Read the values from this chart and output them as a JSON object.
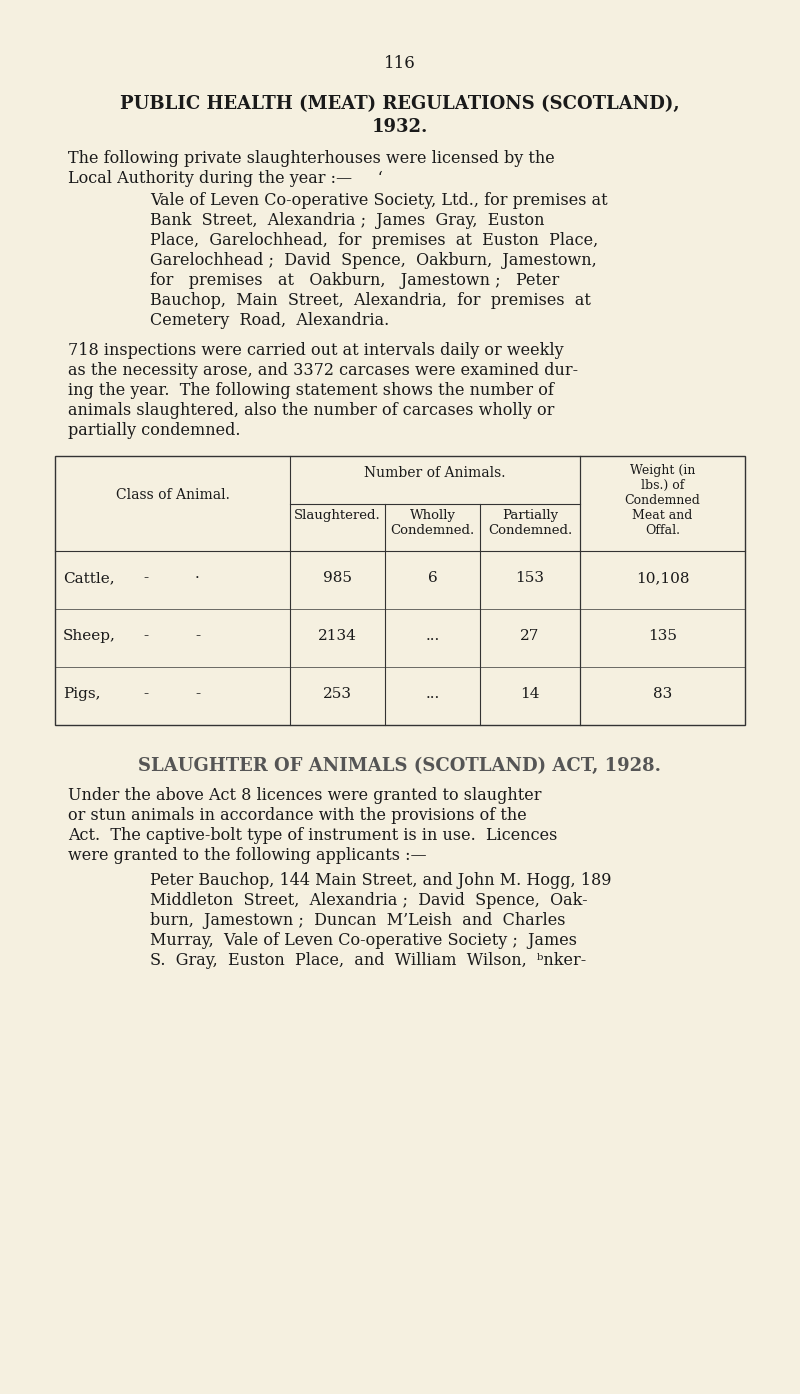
{
  "background_color": "#f5f0e0",
  "page_number": "116",
  "title_line1": "PUBLIC HEALTH (MEAT) REGULATIONS (SCOTLAND),",
  "title_line2": "1932.",
  "para1_line1": "The following private slaughterhouses were licensed by the",
  "para1_line2": "Local Authority during the year :—     ‘",
  "indent_block": [
    "Vale of Leven Co-operative Society, Ltd., for premises at",
    "Bank  Street,  Alexandria ;  James  Gray,  Euston",
    "Place,  Garelochhead,  for  premises  at  Euston  Place,",
    "Garelochhead ;  David  Spence,  Oakburn,  Jamestown,",
    "for   premises   at   Oakburn,   Jamestown ;   Peter",
    "Bauchop,  Main  Street,  Alexandria,  for  premises  at",
    "Cemetery  Road,  Alexandria."
  ],
  "para2_lines": [
    "718 inspections were carried out at intervals daily or weekly",
    "as the necessity arose, and 3372 carcases were examined dur-",
    "ing the year.  The following statement shows the number of",
    "animals slaughtered, also the number of carcases wholly or",
    "partially condemned."
  ],
  "table_data": [
    [
      "Cattle,",
      "-",
      "·",
      "985",
      "6",
      "153",
      "10,108"
    ],
    [
      "Sheep,",
      "-",
      "-",
      "2134",
      "...",
      "27",
      "135"
    ],
    [
      "Pigs,",
      "-",
      "-",
      "253",
      "...",
      "14",
      "83"
    ]
  ],
  "section2_title": "SLAUGHTER OF ANIMALS (SCOTLAND) ACT, 1928.",
  "section2_para1_lines": [
    "Under the above Act 8 licences were granted to slaughter",
    "or stun animals in accordance with the provisions of the",
    "Act.  The captive-bolt type of instrument is in use.  Licences",
    "were granted to the following applicants :—"
  ],
  "section2_indent": [
    "Peter Bauchop, 144 Main Street, and John M. Hogg, 189",
    "Middleton  Street,  Alexandria ;  David  Spence,  Oak-",
    "burn,  Jamestown ;  Duncan  M’Leish  and  Charles",
    "Murray,  Vale of Leven Co-operative Society ;  James",
    "S.  Gray,  Euston  Place,  and  William  Wilson,  ᵇnker-"
  ],
  "text_color": "#1a1a1a",
  "title_color": "#1a1a1a",
  "section2_title_color": "#555555"
}
